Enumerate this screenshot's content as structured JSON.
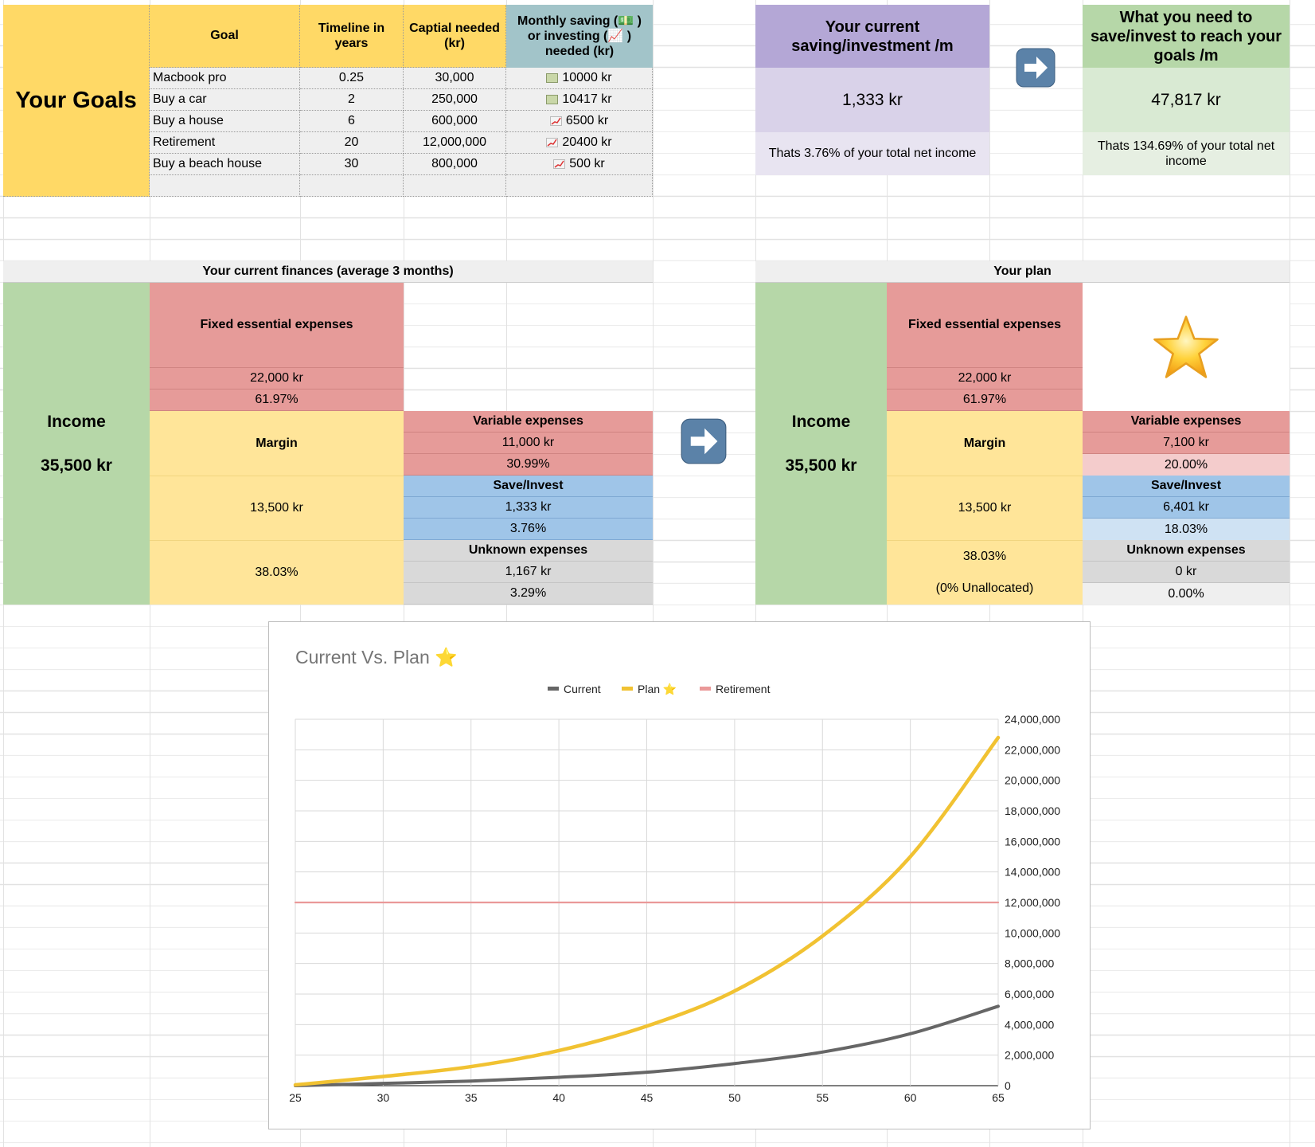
{
  "goals": {
    "title": "Your Goals",
    "headers": [
      "Goal",
      "Timeline in years",
      "Captial needed (kr)",
      "Monthly saving (💵 ) or investing (📈 ) needed (kr)"
    ],
    "rows": [
      {
        "goal": "Macbook pro",
        "years": "0.25",
        "capital": "30,000",
        "icon": "money-icon",
        "monthly": "10000 kr"
      },
      {
        "goal": "Buy a car",
        "years": "2",
        "capital": "250,000",
        "icon": "money-icon",
        "monthly": "10417 kr"
      },
      {
        "goal": "Buy a house",
        "years": "6",
        "capital": "600,000",
        "icon": "chart-increasing-icon",
        "monthly": "6500 kr"
      },
      {
        "goal": "Retirement",
        "years": "20",
        "capital": "12,000,000",
        "icon": "chart-increasing-icon",
        "monthly": "20400 kr"
      },
      {
        "goal": "Buy a beach house",
        "years": "30",
        "capital": "800,000",
        "icon": "chart-increasing-icon",
        "monthly": "500 kr"
      }
    ]
  },
  "summary": {
    "current": {
      "title": "Your current saving/investment /m",
      "value": "1,333 kr",
      "note": "Thats 3.76% of your total net income"
    },
    "needed": {
      "title": "What you need to save/invest to reach your goals /m",
      "value": "47,817 kr",
      "note": "Thats 134.69% of your total net income"
    }
  },
  "current_finances": {
    "title": "Your current finances (average 3 months)",
    "income_label": "Income",
    "income_value": "35,500 kr",
    "fixed_label": "Fixed essential expenses",
    "fixed_value": "22,000 kr",
    "fixed_pct": "61.97%",
    "margin_label": "Margin",
    "margin_value": "13,500 kr",
    "margin_pct": "38.03%",
    "variable_label": "Variable expenses",
    "variable_value": "11,000 kr",
    "variable_pct": "30.99%",
    "save_label": "Save/Invest",
    "save_value": "1,333 kr",
    "save_pct": "3.76%",
    "unknown_label": "Unknown expenses",
    "unknown_value": "1,167 kr",
    "unknown_pct": "3.29%"
  },
  "plan": {
    "title": "Your plan",
    "income_label": "Income",
    "income_value": "35,500 kr",
    "fixed_label": "Fixed essential expenses",
    "fixed_value": "22,000 kr",
    "fixed_pct": "61.97%",
    "margin_label": "Margin",
    "margin_value": "13,500 kr",
    "margin_pct": "38.03%",
    "unallocated": "(0% Unallocated)",
    "variable_label": "Variable expenses",
    "variable_value": "7,100 kr",
    "variable_pct": "20.00%",
    "save_label": "Save/Invest",
    "save_value": "6,401 kr",
    "save_pct": "18.03%",
    "unknown_label": "Unknown expenses",
    "unknown_value": "0 kr",
    "unknown_pct": "0.00%"
  },
  "icons": {
    "arrow": "right-arrow-icon",
    "star": "star-icon"
  },
  "chart_data": {
    "type": "line",
    "title": "Current Vs. Plan ⭐",
    "x": [
      25,
      30,
      35,
      40,
      45,
      50,
      55,
      60,
      65
    ],
    "series": [
      {
        "name": "Current",
        "color": "#666666",
        "values": [
          0,
          150000,
          300000,
          550000,
          880000,
          1450000,
          2200000,
          3400000,
          5200000
        ]
      },
      {
        "name": "Plan ⭐",
        "color": "#f1c232",
        "values": [
          50000,
          600000,
          1250000,
          2300000,
          3900000,
          6200000,
          9800000,
          15000000,
          22800000
        ]
      },
      {
        "name": "Retirement",
        "color": "#ea9999",
        "values": [
          12000000,
          12000000,
          12000000,
          12000000,
          12000000,
          12000000,
          12000000,
          12000000,
          12000000
        ]
      }
    ],
    "xlim": [
      25,
      65
    ],
    "ylim": [
      0,
      24000000
    ],
    "x_ticks": [
      "25",
      "30",
      "35",
      "40",
      "45",
      "50",
      "55",
      "60",
      "65"
    ],
    "y_ticks": [
      "0",
      "2,000,000",
      "4,000,000",
      "6,000,000",
      "8,000,000",
      "10,000,000",
      "12,000,000",
      "14,000,000",
      "16,000,000",
      "18,000,000",
      "20,000,000",
      "22,000,000",
      "24,000,000"
    ],
    "y_axis_side": "right",
    "grid": true,
    "legend": "top"
  }
}
